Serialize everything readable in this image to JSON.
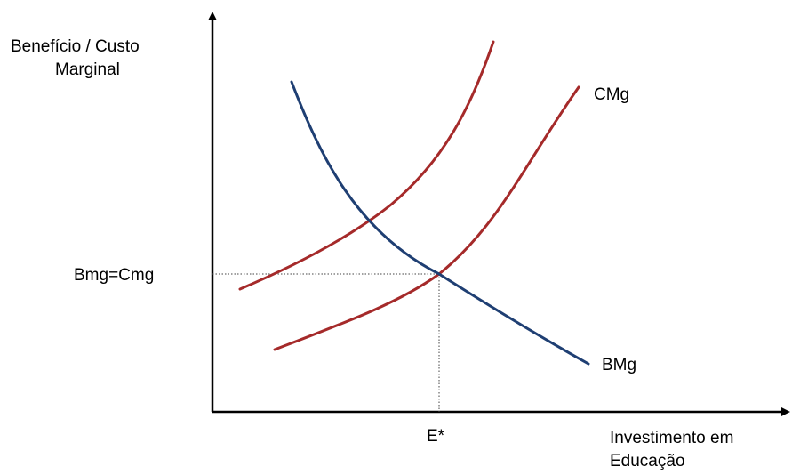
{
  "diagram": {
    "y_axis_label_line1": "Benefício / Custo",
    "y_axis_label_line2": "Marginal",
    "x_axis_label_line1": "Investimento em",
    "x_axis_label_line2": "Educação",
    "y_level_label": "Bmg=Cmg",
    "x_level_label": "E*",
    "curve_labels": {
      "cost_shifted": "CMg",
      "benefit": "BMg"
    },
    "colors": {
      "cost_curves": "#a52a2a",
      "benefit_curve": "#1f3f73",
      "axes": "#000000",
      "guide_lines": "#444444"
    }
  }
}
